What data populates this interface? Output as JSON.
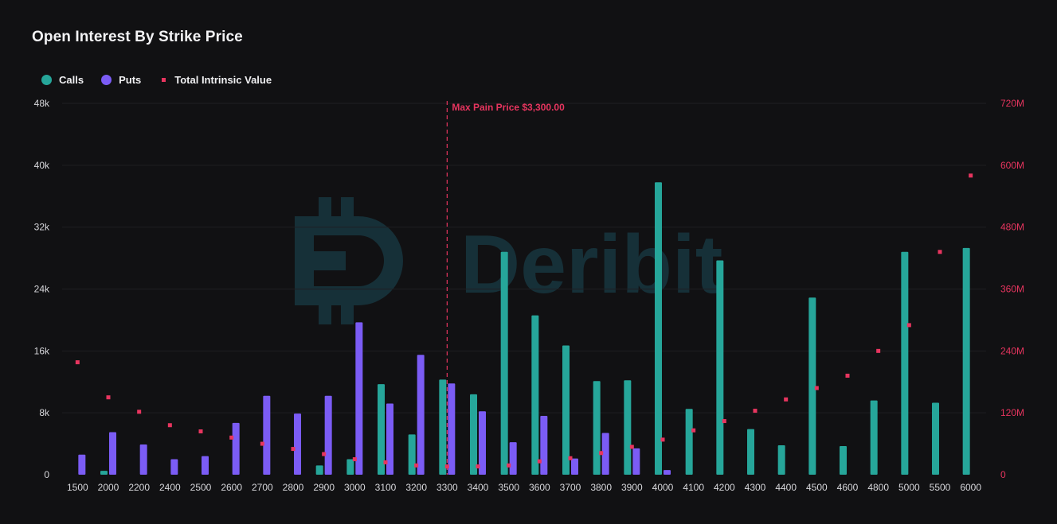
{
  "title": "Open Interest By Strike Price",
  "legend": [
    {
      "label": "Calls",
      "color": "#26a69a",
      "shape": "circle"
    },
    {
      "label": "Puts",
      "color": "#7b5cf5",
      "shape": "circle"
    },
    {
      "label": "Total Intrinsic Value",
      "color": "#e8355f",
      "shape": "square"
    }
  ],
  "watermark": "Deribit",
  "chart_data": {
    "type": "bar",
    "title": "Open Interest By Strike Price",
    "categories": [
      "1500",
      "2000",
      "2200",
      "2400",
      "2500",
      "2600",
      "2700",
      "2800",
      "2900",
      "3000",
      "3100",
      "3200",
      "3300",
      "3400",
      "3500",
      "3600",
      "3700",
      "3800",
      "3900",
      "4000",
      "4100",
      "4200",
      "4300",
      "4400",
      "4500",
      "4600",
      "4800",
      "5000",
      "5500",
      "6000"
    ],
    "series": [
      {
        "name": "Calls",
        "axis": "left",
        "type": "bar",
        "color": "#26a69a",
        "values": [
          0,
          500,
          0,
          0,
          0,
          0,
          0,
          0,
          1200,
          2000,
          11700,
          5200,
          12300,
          10400,
          28800,
          20600,
          16700,
          12100,
          12200,
          37800,
          8500,
          27700,
          5900,
          3800,
          22900,
          3700,
          9600,
          28800,
          9300,
          29300
        ]
      },
      {
        "name": "Puts",
        "axis": "left",
        "type": "bar",
        "color": "#7b5cf5",
        "values": [
          2600,
          5500,
          3900,
          2000,
          2400,
          6700,
          10200,
          7900,
          10200,
          19700,
          9200,
          15500,
          11800,
          8200,
          4200,
          7600,
          2100,
          5400,
          3400,
          600,
          0,
          0,
          0,
          0,
          0,
          0,
          0,
          0,
          0,
          0
        ]
      },
      {
        "name": "Total Intrinsic Value",
        "axis": "right",
        "type": "scatter",
        "color": "#e8355f",
        "values": [
          218000000,
          150000000,
          122000000,
          96000000,
          84000000,
          72000000,
          60000000,
          50000000,
          40000000,
          30000000,
          24000000,
          18000000,
          16000000,
          16000000,
          18000000,
          26000000,
          32000000,
          42000000,
          54000000,
          68000000,
          86000000,
          104000000,
          124000000,
          146000000,
          168000000,
          192000000,
          240000000,
          290000000,
          432000000,
          580000000
        ]
      }
    ],
    "y_left": {
      "min": 0,
      "max": 48000,
      "ticks": [
        "0",
        "8k",
        "16k",
        "24k",
        "32k",
        "40k",
        "48k"
      ]
    },
    "y_right": {
      "min": 0,
      "max": 720000000,
      "ticks": [
        "0",
        "120M",
        "240M",
        "360M",
        "480M",
        "600M",
        "720M"
      ]
    },
    "reference_line": {
      "category": "3300",
      "label": "Max Pain Price $3,300.00",
      "color": "#e8355f"
    },
    "grid": true,
    "legend_position": "top-left"
  }
}
